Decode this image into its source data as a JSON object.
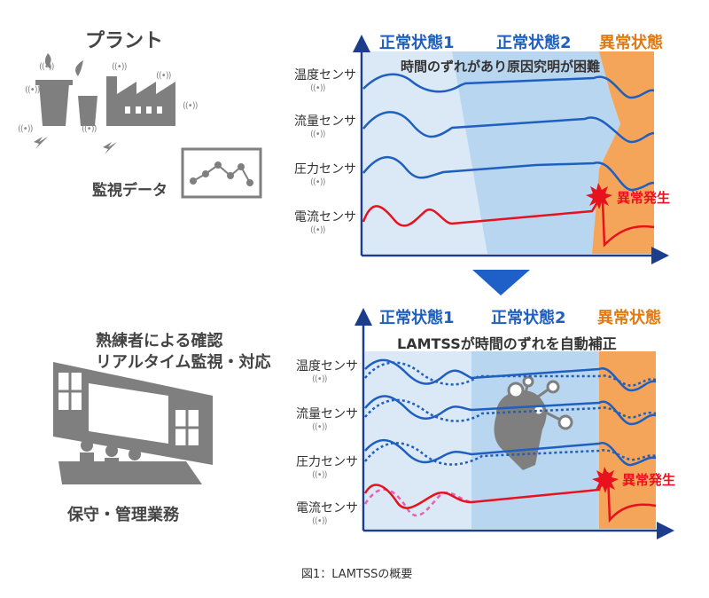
{
  "colors": {
    "normal1_bg": "#dbe9f6",
    "normal2_bg": "#b9d6f1",
    "abnormal_bg": "#f5a55a",
    "blue_line": "#1f5fbf",
    "red_line": "#e8121e",
    "pink_dash": "#e85fb0",
    "axis": "#1c3c8c",
    "state_blue": "#1f5fbf",
    "state_orange": "#e07a12",
    "gray": "#808080"
  },
  "left": {
    "plant_title": "プラント",
    "monitor_label": "監視データ",
    "expert_line1": "熟練者による確認",
    "expert_line2": "リアルタイム監視・対応",
    "maintenance_label": "保守・管理業務"
  },
  "top_panel": {
    "states": [
      "正常状態1",
      "正常状態2",
      "異常状態"
    ],
    "message": "時間のずれがあり原因究明が困難",
    "sensors": [
      "温度センサ",
      "流量センサ",
      "圧力センサ",
      "電流センサ"
    ],
    "anomaly": "異常発生"
  },
  "bottom_panel": {
    "states": [
      "正常状態1",
      "正常状態2",
      "異常状態"
    ],
    "message": "LAMTSSが時間のずれを自動補正",
    "sensors": [
      "温度センサ",
      "流量センサ",
      "圧力センサ",
      "電流センサ"
    ],
    "anomaly": "異常発生"
  },
  "wave_symbol": "((•))",
  "caption": "図1：LAMTSSの概要"
}
